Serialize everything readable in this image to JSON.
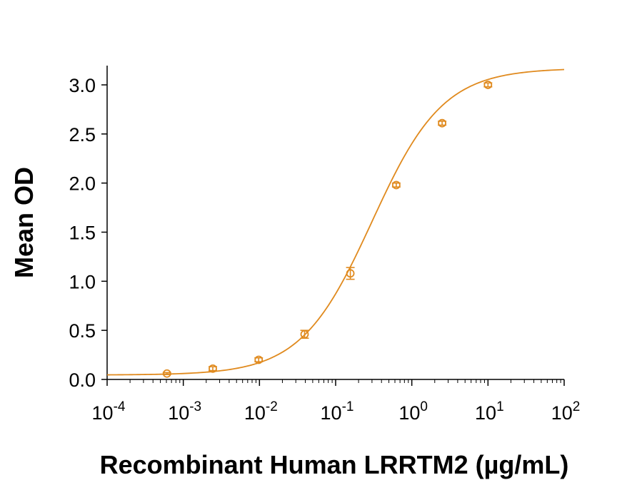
{
  "chart_data": {
    "type": "scatter",
    "title": "",
    "xlabel": "Recombinant Human LRRTM2 (µg/mL)",
    "ylabel": "Mean OD",
    "x_scale": "log",
    "xlim": [
      0.0001,
      100
    ],
    "ylim": [
      0,
      3.2
    ],
    "x_ticks": [
      {
        "base": "10",
        "exp": "-4",
        "value": 0.0001
      },
      {
        "base": "10",
        "exp": "-3",
        "value": 0.001
      },
      {
        "base": "10",
        "exp": "-2",
        "value": 0.01
      },
      {
        "base": "10",
        "exp": "-1",
        "value": 0.1
      },
      {
        "base": "10",
        "exp": "0",
        "value": 1
      },
      {
        "base": "10",
        "exp": "1",
        "value": 10
      },
      {
        "base": "10",
        "exp": "2",
        "value": 100
      }
    ],
    "y_ticks": [
      "0.0",
      "0.5",
      "1.0",
      "1.5",
      "2.0",
      "2.5",
      "3.0"
    ],
    "grid": false,
    "color": "#e08a1e",
    "series": [
      {
        "name": "Mean OD",
        "points": [
          {
            "x": 0.00061,
            "y": 0.06,
            "err": 0.01
          },
          {
            "x": 0.00244,
            "y": 0.11,
            "err": 0.02
          },
          {
            "x": 0.00977,
            "y": 0.2,
            "err": 0.02
          },
          {
            "x": 0.0391,
            "y": 0.46,
            "err": 0.04
          },
          {
            "x": 0.156,
            "y": 1.08,
            "err": 0.06
          },
          {
            "x": 0.625,
            "y": 1.98,
            "err": 0.02
          },
          {
            "x": 2.5,
            "y": 2.61,
            "err": 0.02
          },
          {
            "x": 10,
            "y": 3.0,
            "err": 0.02
          }
        ]
      }
    ],
    "fit": {
      "model": "4PL",
      "bottom": 0.045,
      "top": 3.17,
      "ec50": 0.3,
      "hill": 0.93
    }
  }
}
